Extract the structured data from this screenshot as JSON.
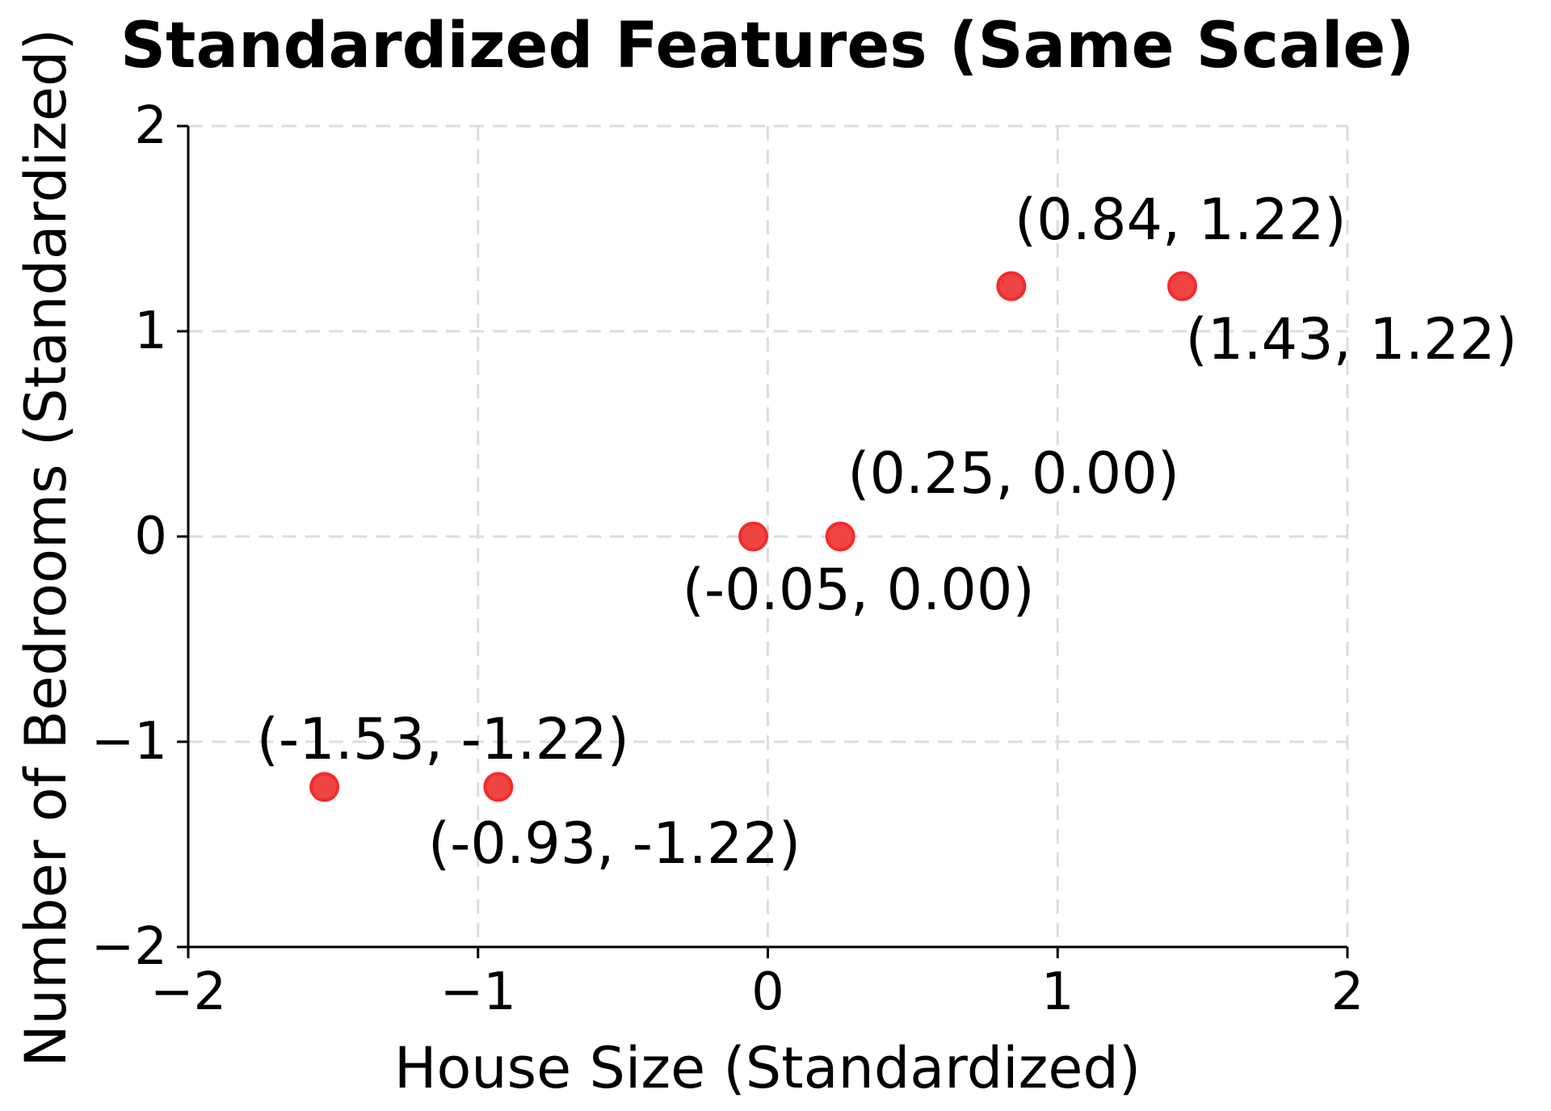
{
  "title": "Standardized Features (Same Scale)",
  "axes": {
    "xlabel": "House Size (Standardized)",
    "ylabel": "Number of Bedrooms (Standardized)",
    "x_tick_labels": [
      "−2",
      "−1",
      "0",
      "1",
      "2"
    ],
    "y_tick_labels": [
      "−2",
      "−1",
      "0",
      "1",
      "2"
    ]
  },
  "chart_data": {
    "type": "scatter",
    "title": "Standardized Features (Same Scale)",
    "xlabel": "House Size (Standardized)",
    "ylabel": "Number of Bedrooms (Standardized)",
    "xlim": [
      -2,
      2
    ],
    "ylim": [
      -2,
      2
    ],
    "x_ticks": [
      -2,
      -1,
      0,
      1,
      2
    ],
    "y_ticks": [
      -2,
      -1,
      0,
      1,
      2
    ],
    "grid": true,
    "grid_style": "dashed",
    "legend": false,
    "points": [
      {
        "x": -1.53,
        "y": -1.22,
        "label": "(-1.53, -1.22)",
        "label_placement": "above"
      },
      {
        "x": -0.93,
        "y": -1.22,
        "label": "(-0.93, -1.22)",
        "label_placement": "below"
      },
      {
        "x": -0.05,
        "y": 0.0,
        "label": "(-0.05, 0.00)",
        "label_placement": "below"
      },
      {
        "x": 0.25,
        "y": 0.0,
        "label": "(0.25, 0.00)",
        "label_placement": "above"
      },
      {
        "x": 0.84,
        "y": 1.22,
        "label": "(0.84, 1.22)",
        "label_placement": "above"
      },
      {
        "x": 1.43,
        "y": 1.22,
        "label": "(1.43, 1.22)",
        "label_placement": "below"
      }
    ]
  },
  "colors": {
    "marker_fill": "#ee4444",
    "marker_edge": "#f22c2c",
    "grid": "#dddddd",
    "axis": "#000000",
    "text": "#000000",
    "background": "#ffffff"
  }
}
